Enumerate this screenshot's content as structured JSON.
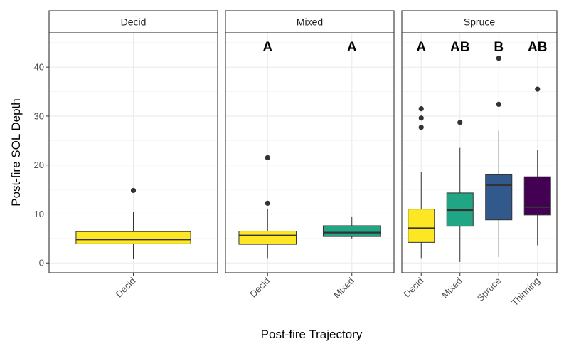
{
  "chart_data": {
    "type": "box",
    "xlabel": "Post-fire Trajectory",
    "ylabel": "Post-fire SOL Depth",
    "ylim": [
      -2,
      47
    ],
    "y_ticks": [
      0,
      10,
      20,
      30,
      40
    ],
    "grid": true,
    "theme": "bw",
    "facet_by": "Pre-fire stand (strip labels)",
    "fill_colors": {
      "Decid": "#FDE725",
      "Mixed": "#21A685",
      "Spruce": "#31598C",
      "Thinning": "#440154"
    },
    "panels": [
      {
        "strip": "Decid",
        "categories": [
          "Decid"
        ],
        "letters": [],
        "boxes": [
          {
            "category": "Decid",
            "lower_whisker": 0.8,
            "q1": 3.9,
            "median": 4.8,
            "q3": 6.4,
            "upper_whisker": 10.5,
            "outliers": [
              14.8
            ]
          }
        ]
      },
      {
        "strip": "Mixed",
        "categories": [
          "Decid",
          "Mixed"
        ],
        "letters": [
          "A",
          "A"
        ],
        "boxes": [
          {
            "category": "Decid",
            "lower_whisker": 1.0,
            "q1": 3.8,
            "median": 5.6,
            "q3": 6.5,
            "upper_whisker": 11.0,
            "outliers": [
              12.2,
              21.5
            ]
          },
          {
            "category": "Mixed",
            "lower_whisker": 5.0,
            "q1": 5.4,
            "median": 6.2,
            "q3": 7.6,
            "upper_whisker": 9.5,
            "outliers": []
          }
        ]
      },
      {
        "strip": "Spruce",
        "categories": [
          "Decid",
          "Mixed",
          "Spruce",
          "Thinning"
        ],
        "letters": [
          "A",
          "AB",
          "B",
          "AB"
        ],
        "boxes": [
          {
            "category": "Decid",
            "lower_whisker": 1.0,
            "q1": 4.2,
            "median": 7.1,
            "q3": 11.0,
            "upper_whisker": 18.5,
            "outliers": [
              27.7,
              29.6,
              31.5
            ]
          },
          {
            "category": "Mixed",
            "lower_whisker": 0.2,
            "q1": 7.5,
            "median": 10.8,
            "q3": 14.3,
            "upper_whisker": 23.5,
            "outliers": [
              28.7
            ]
          },
          {
            "category": "Spruce",
            "lower_whisker": 1.2,
            "q1": 8.8,
            "median": 15.9,
            "q3": 18.0,
            "upper_whisker": 27.0,
            "outliers": [
              32.4,
              41.8
            ]
          },
          {
            "category": "Thinning",
            "lower_whisker": 3.6,
            "q1": 9.8,
            "median": 11.4,
            "q3": 17.6,
            "upper_whisker": 23.0,
            "outliers": [
              35.5
            ]
          }
        ]
      }
    ]
  }
}
